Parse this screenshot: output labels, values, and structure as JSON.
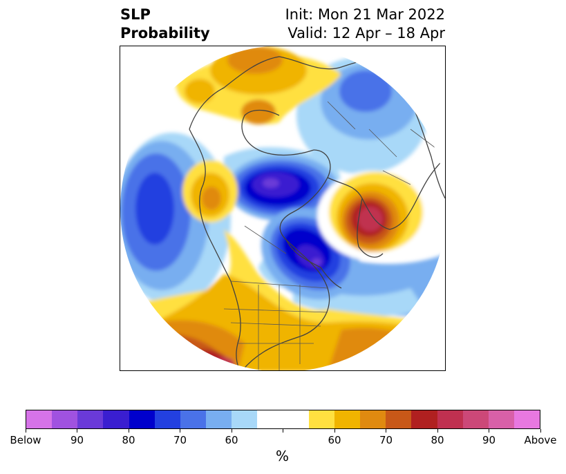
{
  "title": {
    "left_line1": "SLP",
    "left_line2": "Probability",
    "right_line1": "Init: Mon 21 Mar 2022",
    "right_line2": "Valid: 12 Apr – 18 Apr"
  },
  "colorbar": {
    "colors": [
      "#d673e8",
      "#a052e0",
      "#6a3ad8",
      "#3a1ed0",
      "#0000cc",
      "#2340e0",
      "#4a72e8",
      "#78aef0",
      "#a8d8f8",
      "#ffffff",
      "#ffffff",
      "#ffe040",
      "#f0b400",
      "#e08a10",
      "#c85818",
      "#b02020",
      "#c03050",
      "#cc4878",
      "#d860a8",
      "#e878e0"
    ],
    "tick_labels": [
      "Below",
      "90",
      "80",
      "70",
      "60",
      "",
      "60",
      "70",
      "80",
      "90",
      "Above"
    ],
    "unit_label": "%"
  },
  "map": {
    "projection": "north-polar-stereographic",
    "features": [
      "coastlines",
      "country-borders",
      "us-state-borders",
      "canada-province-borders"
    ],
    "anomaly_regions": [
      {
        "name": "greenland-arctic-canada-below",
        "sign": "below",
        "max_percent": 90
      },
      {
        "name": "hudson-bay-great-lakes-below",
        "sign": "below",
        "max_percent": 90
      },
      {
        "name": "north-pacific-below",
        "sign": "below",
        "max_percent": 80
      },
      {
        "name": "northern-siberia-below",
        "sign": "below",
        "max_percent": 70
      },
      {
        "name": "western-europe-above",
        "sign": "above",
        "max_percent": 80
      },
      {
        "name": "gulf-of-alaska-above",
        "sign": "above",
        "max_percent": 70
      },
      {
        "name": "eastern-siberia-above",
        "sign": "above",
        "max_percent": 70
      },
      {
        "name": "united-states-above",
        "sign": "above",
        "max_percent": 80
      }
    ]
  }
}
